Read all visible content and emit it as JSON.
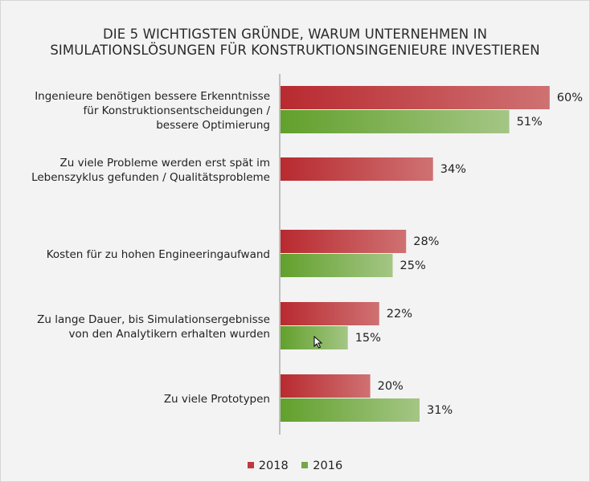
{
  "chart_data": {
    "type": "bar",
    "orientation": "horizontal",
    "title_lines": [
      "DIE 5 WICHTIGSTEN GRÜNDE, WARUM UNTERNEHMEN IN",
      "SIMULATIONSLÖSUNGEN FÜR KONSTRUKTIONSINGENIEURE INVESTIEREN"
    ],
    "categories": [
      [
        "Ingenieure benötigen bessere Erkenntnisse",
        "für Konstruktionsentscheidungen /",
        "bessere Optimierung"
      ],
      [
        "Zu viele Probleme werden erst spät im",
        "Lebenszyklus gefunden / Qualitätsprobleme"
      ],
      [
        "Kosten für zu hohen Engineeringaufwand"
      ],
      [
        "Zu lange Dauer, bis Simulationsergebnisse",
        "von den Analytikern erhalten wurden"
      ],
      [
        "Zu viele Prototypen"
      ]
    ],
    "series": [
      {
        "name": "2018",
        "color": "#c0393e",
        "values": [
          60,
          34,
          28,
          22,
          20
        ]
      },
      {
        "name": "2016",
        "color": "#73a843",
        "values": [
          51,
          null,
          25,
          15,
          31
        ]
      }
    ],
    "value_labels": [
      [
        "60%",
        "34%",
        "28%",
        "22%",
        "20%"
      ],
      [
        "51%",
        null,
        "25%",
        "15%",
        "31%"
      ]
    ],
    "xlim": [
      0,
      100
    ],
    "legend_position": "bottom"
  }
}
